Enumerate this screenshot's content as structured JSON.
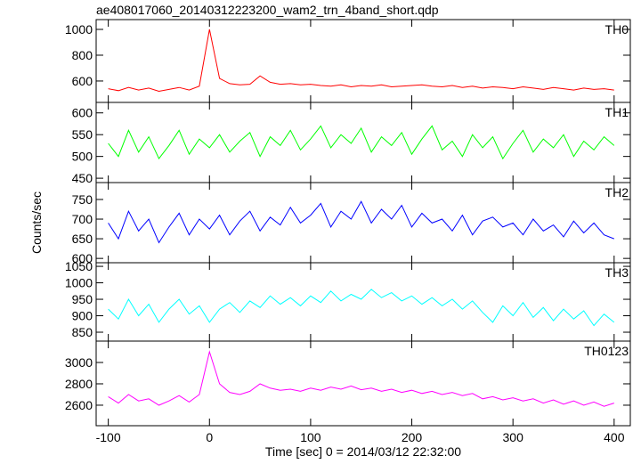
{
  "chart_data": [
    {
      "type": "line",
      "title": "ae408017060_20140312223200_wam2_trn_4band_short.qdp",
      "x": [
        -100,
        -90,
        -80,
        -70,
        -60,
        -50,
        -40,
        -30,
        -20,
        -10,
        0,
        10,
        20,
        30,
        40,
        50,
        60,
        70,
        80,
        90,
        100,
        110,
        120,
        130,
        140,
        150,
        160,
        170,
        180,
        190,
        200,
        210,
        220,
        230,
        240,
        250,
        260,
        270,
        280,
        290,
        300,
        310,
        320,
        330,
        340,
        350,
        360,
        370,
        380,
        390,
        400
      ],
      "series": [
        {
          "name": "TH0",
          "color": "#ff0000",
          "values": [
            540,
            525,
            550,
            530,
            545,
            520,
            535,
            550,
            530,
            560,
            1000,
            620,
            580,
            570,
            575,
            640,
            590,
            575,
            580,
            570,
            575,
            565,
            560,
            570,
            555,
            565,
            560,
            570,
            555,
            560,
            565,
            570,
            560,
            555,
            565,
            550,
            560,
            545,
            555,
            550,
            540,
            555,
            545,
            535,
            550,
            540,
            530,
            545,
            535,
            540,
            530
          ]
        }
      ],
      "xlim": [
        -112,
        416
      ],
      "ylim": [
        434,
        1076
      ],
      "yticks": [
        600,
        800,
        1000
      ]
    },
    {
      "type": "line",
      "x": [
        -100,
        -90,
        -80,
        -70,
        -60,
        -50,
        -40,
        -30,
        -20,
        -10,
        0,
        10,
        20,
        30,
        40,
        50,
        60,
        70,
        80,
        90,
        100,
        110,
        120,
        130,
        140,
        150,
        160,
        170,
        180,
        190,
        200,
        210,
        220,
        230,
        240,
        250,
        260,
        270,
        280,
        290,
        300,
        310,
        320,
        330,
        340,
        350,
        360,
        370,
        380,
        390,
        400
      ],
      "series": [
        {
          "name": "TH1",
          "color": "#00ff00",
          "values": [
            530,
            500,
            560,
            510,
            545,
            495,
            525,
            560,
            505,
            540,
            520,
            550,
            510,
            535,
            555,
            500,
            545,
            525,
            560,
            515,
            540,
            570,
            520,
            550,
            530,
            565,
            510,
            545,
            525,
            555,
            505,
            540,
            570,
            515,
            535,
            500,
            550,
            520,
            545,
            495,
            530,
            560,
            510,
            540,
            520,
            550,
            500,
            535,
            515,
            545,
            525
          ]
        }
      ],
      "xlim": [
        -112,
        416
      ],
      "ylim": [
        440,
        624
      ],
      "yticks": [
        450,
        500,
        550,
        600
      ]
    },
    {
      "type": "line",
      "ylabel": "Counts/sec",
      "x": [
        -100,
        -90,
        -80,
        -70,
        -60,
        -50,
        -40,
        -30,
        -20,
        -10,
        0,
        10,
        20,
        30,
        40,
        50,
        60,
        70,
        80,
        90,
        100,
        110,
        120,
        130,
        140,
        150,
        160,
        170,
        180,
        190,
        200,
        210,
        220,
        230,
        240,
        250,
        260,
        270,
        280,
        290,
        300,
        310,
        320,
        330,
        340,
        350,
        360,
        370,
        380,
        390,
        400
      ],
      "series": [
        {
          "name": "TH2",
          "color": "#0000ff",
          "values": [
            690,
            650,
            720,
            670,
            700,
            640,
            680,
            715,
            660,
            700,
            675,
            710,
            660,
            695,
            720,
            670,
            705,
            685,
            730,
            690,
            710,
            740,
            680,
            720,
            700,
            745,
            690,
            725,
            700,
            735,
            680,
            715,
            690,
            700,
            670,
            710,
            660,
            695,
            705,
            680,
            690,
            660,
            700,
            670,
            685,
            655,
            695,
            665,
            690,
            660,
            650
          ]
        }
      ],
      "xlim": [
        -112,
        416
      ],
      "ylim": [
        589,
        793
      ],
      "yticks": [
        600,
        650,
        700,
        750
      ]
    },
    {
      "type": "line",
      "x": [
        -100,
        -90,
        -80,
        -70,
        -60,
        -50,
        -40,
        -30,
        -20,
        -10,
        0,
        10,
        20,
        30,
        40,
        50,
        60,
        70,
        80,
        90,
        100,
        110,
        120,
        130,
        140,
        150,
        160,
        170,
        180,
        190,
        200,
        210,
        220,
        230,
        240,
        250,
        260,
        270,
        280,
        290,
        300,
        310,
        320,
        330,
        340,
        350,
        360,
        370,
        380,
        390,
        400
      ],
      "series": [
        {
          "name": "TH3",
          "color": "#00ffff",
          "values": [
            920,
            890,
            950,
            900,
            935,
            880,
            920,
            950,
            905,
            930,
            880,
            920,
            940,
            910,
            945,
            925,
            960,
            935,
            955,
            930,
            960,
            940,
            975,
            945,
            965,
            950,
            980,
            955,
            970,
            945,
            960,
            935,
            955,
            930,
            950,
            920,
            945,
            910,
            880,
            930,
            900,
            940,
            895,
            925,
            885,
            920,
            890,
            915,
            870,
            905,
            880
          ]
        }
      ],
      "xlim": [
        -112,
        416
      ],
      "ylim": [
        823,
        1061
      ],
      "yticks": [
        850,
        900,
        950,
        1000,
        1050
      ]
    },
    {
      "type": "line",
      "xlabel": "Time [sec] 0 = 2014/03/12 22:32:00",
      "x": [
        -100,
        -90,
        -80,
        -70,
        -60,
        -50,
        -40,
        -30,
        -20,
        -10,
        0,
        10,
        20,
        30,
        40,
        50,
        60,
        70,
        80,
        90,
        100,
        110,
        120,
        130,
        140,
        150,
        160,
        170,
        180,
        190,
        200,
        210,
        220,
        230,
        240,
        250,
        260,
        270,
        280,
        290,
        300,
        310,
        320,
        330,
        340,
        350,
        360,
        370,
        380,
        390,
        400
      ],
      "series": [
        {
          "name": "TH0123",
          "color": "#ff00ff",
          "values": [
            2680,
            2620,
            2700,
            2640,
            2660,
            2600,
            2640,
            2690,
            2630,
            2700,
            3100,
            2800,
            2720,
            2700,
            2730,
            2800,
            2760,
            2740,
            2750,
            2730,
            2760,
            2740,
            2770,
            2750,
            2780,
            2745,
            2760,
            2730,
            2750,
            2720,
            2740,
            2710,
            2730,
            2700,
            2720,
            2690,
            2710,
            2660,
            2680,
            2650,
            2670,
            2640,
            2660,
            2620,
            2650,
            2610,
            2640,
            2600,
            2630,
            2590,
            2620
          ]
        }
      ],
      "xlim": [
        -112,
        416
      ],
      "ylim": [
        2408,
        3200
      ],
      "yticks": [
        2600,
        2800,
        3000
      ],
      "xticks": [
        -100,
        0,
        100,
        200,
        300,
        400
      ]
    }
  ]
}
